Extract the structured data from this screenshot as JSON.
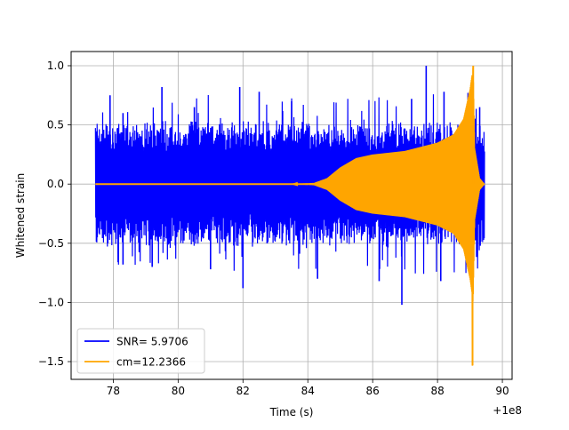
{
  "chart_data": {
    "type": "line",
    "xlabel": "Time (s)",
    "ylabel": "Whitened strain",
    "x_offset_label": "+1e8",
    "xlim": [
      76.7,
      90.3
    ],
    "ylim": [
      -1.65,
      1.12
    ],
    "x_ticks": [
      78,
      80,
      82,
      84,
      86,
      88,
      90
    ],
    "x_tick_labels": [
      "78",
      "80",
      "82",
      "84",
      "86",
      "88",
      "90"
    ],
    "y_ticks": [
      -1.5,
      -1.0,
      -0.5,
      0.0,
      0.5,
      1.0
    ],
    "y_tick_labels": [
      "−1.5",
      "−1.0",
      "−0.5",
      "0.0",
      "0.5",
      "1.0"
    ],
    "grid": true,
    "legend_position": "lower-left",
    "series": [
      {
        "name": "SNR= 5.9706",
        "color": "#0000ff",
        "kind": "noise-band",
        "x_range": [
          77.45,
          89.45
        ],
        "typical_envelope": [
          -0.5,
          0.5
        ],
        "peaks": [
          {
            "x": 77.5,
            "y": 0.45
          },
          {
            "x": 77.9,
            "y": 0.75
          },
          {
            "x": 78.3,
            "y": 0.6
          },
          {
            "x": 79.5,
            "y": 0.82
          },
          {
            "x": 80.5,
            "y": 0.65
          },
          {
            "x": 81.9,
            "y": 0.82
          },
          {
            "x": 82.5,
            "y": 0.78
          },
          {
            "x": 83.5,
            "y": 0.7
          },
          {
            "x": 87.2,
            "y": 0.72
          },
          {
            "x": 87.65,
            "y": 1.0
          },
          {
            "x": 88.2,
            "y": 0.78
          },
          {
            "x": 89.3,
            "y": 0.65
          }
        ],
        "troughs": [
          {
            "x": 77.5,
            "y": -0.45
          },
          {
            "x": 78.3,
            "y": -0.68
          },
          {
            "x": 79.2,
            "y": -0.7
          },
          {
            "x": 81.0,
            "y": -0.72
          },
          {
            "x": 82.0,
            "y": -0.88
          },
          {
            "x": 84.3,
            "y": -0.8
          },
          {
            "x": 86.2,
            "y": -0.82
          },
          {
            "x": 86.9,
            "y": -1.02
          },
          {
            "x": 88.1,
            "y": -0.82
          },
          {
            "x": 89.0,
            "y": -0.7
          }
        ]
      },
      {
        "name": "cm=12.2366",
        "color": "#ffa500",
        "kind": "chirp",
        "x_range": [
          77.45,
          89.45
        ],
        "envelope": [
          {
            "x": 77.45,
            "y": 0.0
          },
          {
            "x": 83.5,
            "y": 0.0
          },
          {
            "x": 84.2,
            "y": 0.01
          },
          {
            "x": 84.6,
            "y": 0.05
          },
          {
            "x": 85.0,
            "y": 0.14
          },
          {
            "x": 85.5,
            "y": 0.22
          },
          {
            "x": 86.0,
            "y": 0.25
          },
          {
            "x": 87.0,
            "y": 0.28
          },
          {
            "x": 88.0,
            "y": 0.35
          },
          {
            "x": 88.5,
            "y": 0.42
          },
          {
            "x": 88.8,
            "y": 0.55
          },
          {
            "x": 89.0,
            "y": 0.8
          },
          {
            "x": 89.1,
            "y": 1.0
          },
          {
            "x": 89.15,
            "y": 0.3
          },
          {
            "x": 89.3,
            "y": 0.05
          },
          {
            "x": 89.45,
            "y": 0.0
          }
        ],
        "max_point": {
          "x": 89.1,
          "y": 1.0
        },
        "min_point": {
          "x": 89.08,
          "y": -1.53
        }
      }
    ]
  }
}
